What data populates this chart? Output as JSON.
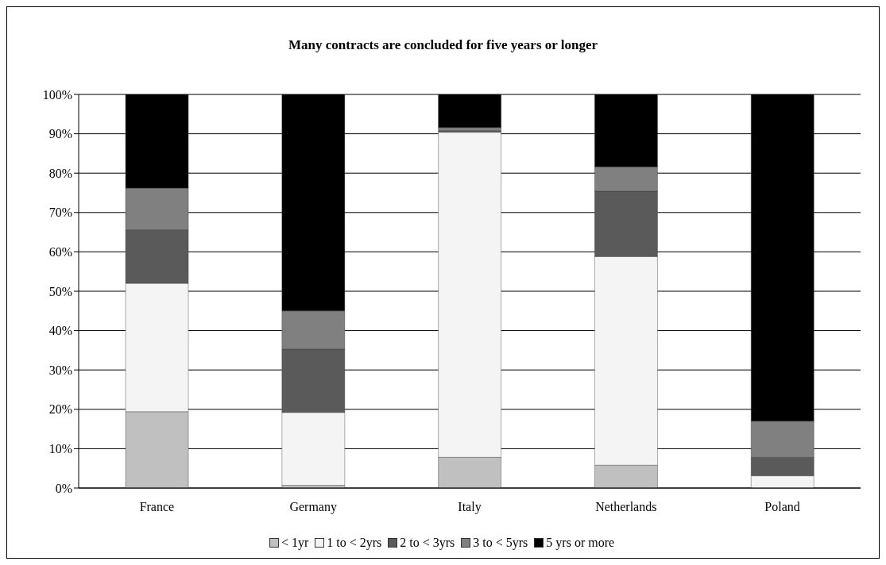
{
  "chart_data": {
    "type": "bar",
    "title": "Many contracts are concluded for five years or longer",
    "categories": [
      "France",
      "Germany",
      "Italy",
      "Netherlands",
      "Poland"
    ],
    "stacked": true,
    "series": [
      {
        "name": "< 1yr",
        "color": "#c0c0c0",
        "values": [
          19.4,
          0.7,
          7.8,
          5.8,
          0
        ]
      },
      {
        "name": "1 to < 2yrs",
        "color": "#f4f4f4",
        "values": [
          32.6,
          18.5,
          82.6,
          53.0,
          3.1
        ]
      },
      {
        "name": "2 to < 3yrs",
        "color": "#5a5a5a",
        "values": [
          13.6,
          16.1,
          0.4,
          16.6,
          4.7
        ]
      },
      {
        "name": "3 to < 5yrs",
        "color": "#808080",
        "values": [
          10.6,
          9.7,
          0.8,
          6.2,
          9.2
        ]
      },
      {
        "name": "5 yrs or more",
        "color": "#000000",
        "values": [
          23.8,
          55.0,
          8.4,
          18.4,
          83.0
        ]
      }
    ],
    "ylim": [
      0,
      100
    ],
    "yticks": [
      {
        "value": 0,
        "label": "0%"
      },
      {
        "value": 10,
        "label": "10%"
      },
      {
        "value": 20,
        "label": "20%"
      },
      {
        "value": 30,
        "label": "30%"
      },
      {
        "value": 40,
        "label": "40%"
      },
      {
        "value": 50,
        "label": "50%"
      },
      {
        "value": 60,
        "label": "60%"
      },
      {
        "value": 70,
        "label": "70%"
      },
      {
        "value": 80,
        "label": "80%"
      },
      {
        "value": 90,
        "label": "90%"
      },
      {
        "value": 100,
        "label": "100%"
      }
    ],
    "grid": "y",
    "legend": "bottom"
  }
}
